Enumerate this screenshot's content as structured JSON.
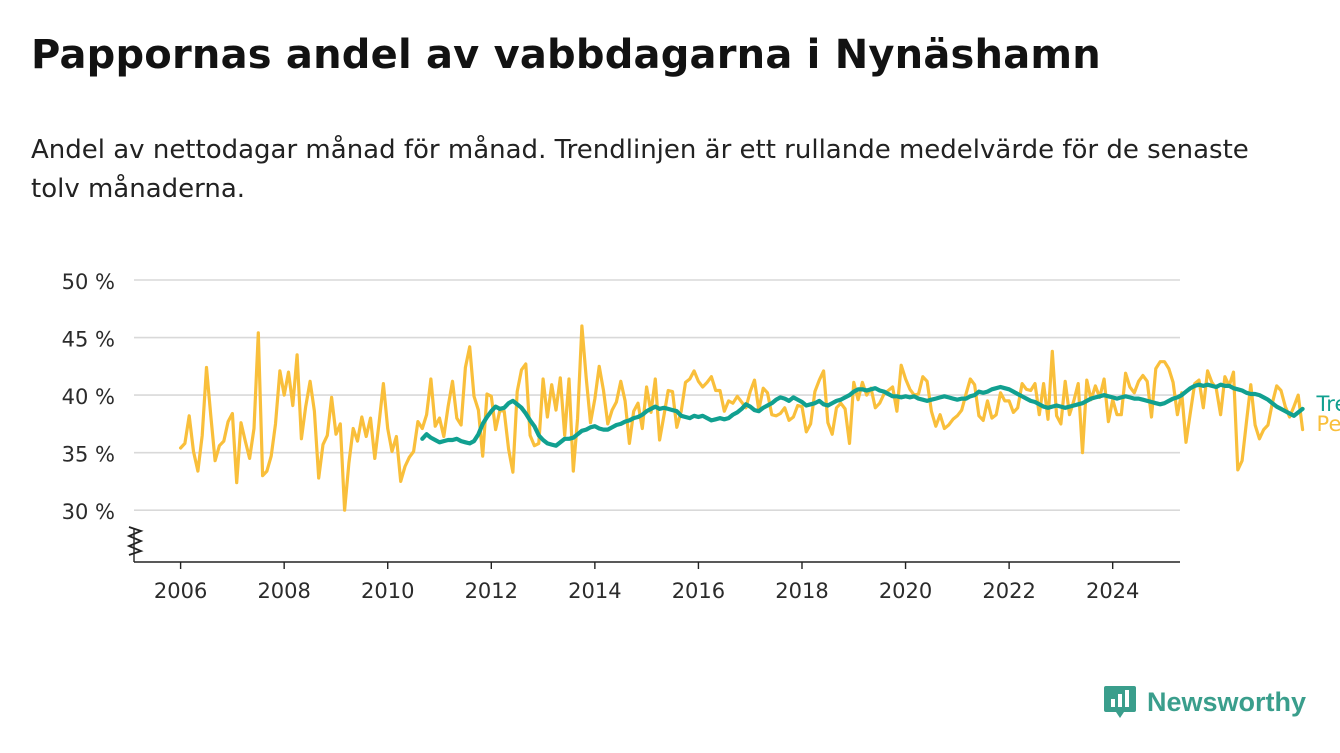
{
  "title": "Pappornas andel av vabbdagarna i Nynäshamn",
  "subtitle": "Andel av nettodagar månad för månad. Trendlinjen är ett rullande medelvärde för de senaste tolv månaderna.",
  "brand": {
    "name": "Newsworthy",
    "color": "#3a9e8c",
    "icon": "newsworthy-logo-icon"
  },
  "chart_data": {
    "type": "line",
    "x_start": "2006-01",
    "x_step": "month",
    "xlim": [
      2005.1,
      2025.3
    ],
    "ylim": [
      25.5,
      50
    ],
    "y_ticks": [
      30,
      35,
      40,
      45,
      50
    ],
    "y_tick_labels": [
      "30 %",
      "35 %",
      "40 %",
      "45 %",
      "50 %"
    ],
    "x_ticks": [
      2006,
      2008,
      2010,
      2012,
      2014,
      2016,
      2018,
      2020,
      2022,
      2024
    ],
    "x_tick_labels": [
      "2006",
      "2008",
      "2010",
      "2012",
      "2014",
      "2016",
      "2018",
      "2020",
      "2022",
      "2024"
    ],
    "grid": true,
    "axis_break": true,
    "series": [
      {
        "name": "Per månad",
        "color": "#f9bf3b",
        "values": [
          35.4,
          35.8,
          38.2,
          35.1,
          33.4,
          36.5,
          42.4,
          38.2,
          34.3,
          35.6,
          36.0,
          37.7,
          38.4,
          32.4,
          37.6,
          36.0,
          34.5,
          37.1,
          45.4,
          33.0,
          33.4,
          34.7,
          37.5,
          42.1,
          40.0,
          42.0,
          39.1,
          43.5,
          36.2,
          39.0,
          41.2,
          38.6,
          32.8,
          35.7,
          36.5,
          39.8,
          36.6,
          37.5,
          30.0,
          34.1,
          37.1,
          36.0,
          38.1,
          36.4,
          38.0,
          34.5,
          37.6,
          41.0,
          37.1,
          35.1,
          36.4,
          32.5,
          33.8,
          34.6,
          35.1,
          37.7,
          37.1,
          38.3,
          41.4,
          37.3,
          38.0,
          36.4,
          39.0,
          41.2,
          38.0,
          37.4,
          42.4,
          44.2,
          39.9,
          38.7,
          34.7,
          40.1,
          39.9,
          37.0,
          38.7,
          38.6,
          35.3,
          33.3,
          40.3,
          42.2,
          42.7,
          36.5,
          35.6,
          35.8,
          41.4,
          38.1,
          40.9,
          38.7,
          41.5,
          36.5,
          41.4,
          33.4,
          38.0,
          46.0,
          41.5,
          37.6,
          39.7,
          42.5,
          40.4,
          37.5,
          38.7,
          39.4,
          41.2,
          39.5,
          35.8,
          38.6,
          39.3,
          37.1,
          40.7,
          38.5,
          41.4,
          36.1,
          38.2,
          40.4,
          40.3,
          37.2,
          38.6,
          41.1,
          41.4,
          42.1,
          41.2,
          40.7,
          41.1,
          41.6,
          40.4,
          40.4,
          38.6,
          39.5,
          39.3,
          39.9,
          39.4,
          38.9,
          40.3,
          41.3,
          38.7,
          40.6,
          40.2,
          38.3,
          38.2,
          38.4,
          38.9,
          37.8,
          38.1,
          39.1,
          39.0,
          36.8,
          37.5,
          40.3,
          41.3,
          42.1,
          37.6,
          36.6,
          38.9,
          39.3,
          38.8,
          35.8,
          41.1,
          39.6,
          41.1,
          40.0,
          40.6,
          38.9,
          39.3,
          40.1,
          40.4,
          40.7,
          38.6,
          42.6,
          41.4,
          40.5,
          40.0,
          40.1,
          41.6,
          41.2,
          38.6,
          37.3,
          38.3,
          37.1,
          37.4,
          37.9,
          38.2,
          38.7,
          40.1,
          41.4,
          40.9,
          38.2,
          37.8,
          39.5,
          38.0,
          38.3,
          40.2,
          39.5,
          39.5,
          38.5,
          38.9,
          41.0,
          40.5,
          40.4,
          41.0,
          38.3,
          41.0,
          37.9,
          43.8,
          38.2,
          37.5,
          41.2,
          38.3,
          39.5,
          41.0,
          35.0,
          41.3,
          39.6,
          40.8,
          39.8,
          41.4,
          37.7,
          39.6,
          38.3,
          38.3,
          41.9,
          40.7,
          40.2,
          41.2,
          41.7,
          41.2,
          38.1,
          42.3,
          42.9,
          42.9,
          42.3,
          41.1,
          38.3,
          40.2,
          35.9,
          38.5,
          41.0,
          41.3,
          38.9,
          42.1,
          41.1,
          40.6,
          38.3,
          41.6,
          40.8,
          42.0,
          33.5,
          34.3,
          37.7,
          40.9,
          37.4,
          36.2,
          37.0,
          37.4,
          39.3,
          40.8,
          40.4,
          39.0,
          38.1,
          39.0,
          40.0,
          37.0
        ]
      },
      {
        "name": "Trend",
        "color": "#11a090",
        "values": [
          36.2,
          36.6,
          36.3,
          36.1,
          35.9,
          36.0,
          36.1,
          36.1,
          36.2,
          36.0,
          35.9,
          35.8,
          36.0,
          36.6,
          37.5,
          38.1,
          38.6,
          39.0,
          38.8,
          38.9,
          39.3,
          39.5,
          39.2,
          38.9,
          38.4,
          37.8,
          37.3,
          36.5,
          36.1,
          35.8,
          35.7,
          35.6,
          35.9,
          36.2,
          36.2,
          36.3,
          36.6,
          36.9,
          37.0,
          37.2,
          37.3,
          37.1,
          37.0,
          37.0,
          37.2,
          37.4,
          37.5,
          37.7,
          37.8,
          38.0,
          38.1,
          38.3,
          38.6,
          38.8,
          39.0,
          38.8,
          38.9,
          38.8,
          38.7,
          38.6,
          38.2,
          38.1,
          38.0,
          38.2,
          38.1,
          38.2,
          38.0,
          37.8,
          37.9,
          38.0,
          37.9,
          38.0,
          38.3,
          38.5,
          38.8,
          39.2,
          39.0,
          38.7,
          38.6,
          38.9,
          39.1,
          39.3,
          39.6,
          39.8,
          39.7,
          39.5,
          39.8,
          39.6,
          39.4,
          39.1,
          39.2,
          39.3,
          39.5,
          39.2,
          39.1,
          39.3,
          39.5,
          39.6,
          39.8,
          40.0,
          40.3,
          40.5,
          40.5,
          40.4,
          40.5,
          40.6,
          40.4,
          40.3,
          40.1,
          39.9,
          39.9,
          39.8,
          39.9,
          39.8,
          39.9,
          39.7,
          39.6,
          39.5,
          39.6,
          39.7,
          39.8,
          39.9,
          39.8,
          39.7,
          39.6,
          39.7,
          39.7,
          39.9,
          40.0,
          40.3,
          40.2,
          40.3,
          40.5,
          40.6,
          40.7,
          40.6,
          40.5,
          40.3,
          40.1,
          39.9,
          39.7,
          39.5,
          39.4,
          39.2,
          39.0,
          38.9,
          39.0,
          39.1,
          39.0,
          38.9,
          39.0,
          39.1,
          39.2,
          39.3,
          39.5,
          39.7,
          39.8,
          39.9,
          40.0,
          39.9,
          39.8,
          39.7,
          39.8,
          39.9,
          39.8,
          39.7,
          39.7,
          39.6,
          39.5,
          39.4,
          39.3,
          39.2,
          39.3,
          39.5,
          39.7,
          39.8,
          40.0,
          40.3,
          40.6,
          40.8,
          40.9,
          40.8,
          40.9,
          40.8,
          40.7,
          40.9,
          40.8,
          40.8,
          40.6,
          40.5,
          40.4,
          40.2,
          40.1,
          40.1,
          40.0,
          39.8,
          39.6,
          39.3,
          39.0,
          38.8,
          38.6,
          38.4,
          38.2,
          38.5,
          38.8
        ]
      }
    ]
  }
}
